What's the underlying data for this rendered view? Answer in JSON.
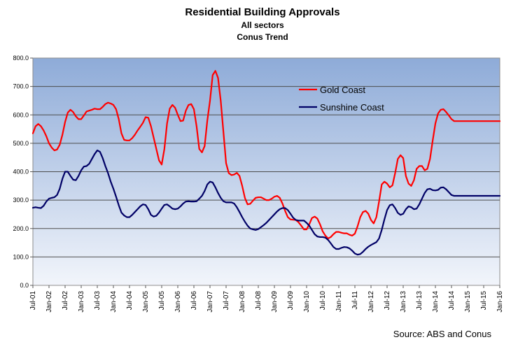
{
  "chart_data": {
    "type": "line",
    "title": "Residential Building Approvals",
    "subtitle": "All sectors",
    "subtitle2": "Conus Trend",
    "source": "Source: ABS and Conus",
    "xlabel": "",
    "ylabel": "",
    "ylim": [
      0,
      800
    ],
    "yticks": [
      "0.0",
      "100.0",
      "200.0",
      "300.0",
      "400.0",
      "500.0",
      "600.0",
      "700.0",
      "800.0"
    ],
    "x_tick_labels": [
      "Jul-01",
      "Jan-02",
      "Jul-02",
      "Jan-03",
      "Jul-03",
      "Jan-04",
      "Jul-04",
      "Jan-05",
      "Jul-05",
      "Jan-06",
      "Jul-06",
      "Jan-07",
      "Jul-07",
      "Jan-08",
      "Jul-08",
      "Jan-09",
      "Jul-09",
      "Jan-10",
      "Jul-10",
      "Jan-11",
      "Jul-11",
      "Jan-12",
      "Jul-12",
      "Jan-13",
      "Jul-13",
      "Jan-14",
      "Jul-14",
      "Jan-15",
      "Jul-15",
      "Jan-16"
    ],
    "start_month": "Jul-01",
    "n_points": 175,
    "grid": true,
    "legend_position": "upper-right-inside",
    "colors": {
      "plot_top": "#8eabd8",
      "plot_bottom": "#f2f5fb",
      "grid": "#4d4d4d",
      "gold": "#ff0000",
      "sunshine": "#000066"
    },
    "series": [
      {
        "name": "Gold Coast",
        "color": "#ff0000",
        "anchors": [
          [
            0,
            535
          ],
          [
            1,
            560
          ],
          [
            2,
            568
          ],
          [
            3,
            560
          ],
          [
            4,
            545
          ],
          [
            5,
            525
          ],
          [
            6,
            500
          ],
          [
            7,
            485
          ],
          [
            8,
            475
          ],
          [
            9,
            478
          ],
          [
            10,
            495
          ],
          [
            11,
            530
          ],
          [
            12,
            575
          ],
          [
            13,
            608
          ],
          [
            14,
            618
          ],
          [
            15,
            610
          ],
          [
            16,
            595
          ],
          [
            17,
            585
          ],
          [
            18,
            585
          ],
          [
            19,
            598
          ],
          [
            20,
            612
          ],
          [
            21,
            615
          ],
          [
            22,
            618
          ],
          [
            23,
            622
          ],
          [
            24,
            620
          ],
          [
            25,
            620
          ],
          [
            26,
            628
          ],
          [
            27,
            638
          ],
          [
            28,
            643
          ],
          [
            29,
            640
          ],
          [
            30,
            635
          ],
          [
            31,
            620
          ],
          [
            32,
            585
          ],
          [
            33,
            535
          ],
          [
            34,
            512
          ],
          [
            35,
            510
          ],
          [
            36,
            510
          ],
          [
            37,
            518
          ],
          [
            38,
            530
          ],
          [
            39,
            545
          ],
          [
            40,
            558
          ],
          [
            41,
            572
          ],
          [
            42,
            592
          ],
          [
            43,
            590
          ],
          [
            44,
            560
          ],
          [
            45,
            520
          ],
          [
            46,
            480
          ],
          [
            47,
            440
          ],
          [
            48,
            425
          ],
          [
            49,
            480
          ],
          [
            50,
            570
          ],
          [
            51,
            622
          ],
          [
            52,
            635
          ],
          [
            53,
            625
          ],
          [
            54,
            600
          ],
          [
            55,
            578
          ],
          [
            56,
            580
          ],
          [
            57,
            615
          ],
          [
            58,
            635
          ],
          [
            59,
            638
          ],
          [
            60,
            620
          ],
          [
            61,
            560
          ],
          [
            62,
            480
          ],
          [
            63,
            468
          ],
          [
            64,
            490
          ],
          [
            65,
            580
          ],
          [
            66,
            650
          ],
          [
            67,
            740
          ],
          [
            68,
            755
          ],
          [
            69,
            730
          ],
          [
            70,
            650
          ],
          [
            71,
            540
          ],
          [
            72,
            430
          ],
          [
            73,
            395
          ],
          [
            74,
            388
          ],
          [
            75,
            390
          ],
          [
            76,
            396
          ],
          [
            77,
            385
          ],
          [
            78,
            350
          ],
          [
            79,
            308
          ],
          [
            80,
            285
          ],
          [
            81,
            287
          ],
          [
            82,
            298
          ],
          [
            83,
            308
          ],
          [
            84,
            310
          ],
          [
            85,
            310
          ],
          [
            86,
            305
          ],
          [
            87,
            300
          ],
          [
            88,
            300
          ],
          [
            89,
            305
          ],
          [
            90,
            312
          ],
          [
            91,
            315
          ],
          [
            92,
            308
          ],
          [
            93,
            288
          ],
          [
            94,
            262
          ],
          [
            95,
            240
          ],
          [
            96,
            232
          ],
          [
            97,
            231
          ],
          [
            98,
            230
          ],
          [
            99,
            222
          ],
          [
            100,
            210
          ],
          [
            101,
            197
          ],
          [
            102,
            197
          ],
          [
            103,
            215
          ],
          [
            104,
            237
          ],
          [
            105,
            242
          ],
          [
            106,
            235
          ],
          [
            107,
            215
          ],
          [
            108,
            190
          ],
          [
            109,
            175
          ],
          [
            110,
            165
          ],
          [
            111,
            170
          ],
          [
            112,
            180
          ],
          [
            113,
            188
          ],
          [
            114,
            188
          ],
          [
            115,
            185
          ],
          [
            116,
            183
          ],
          [
            117,
            183
          ],
          [
            118,
            178
          ],
          [
            119,
            175
          ],
          [
            120,
            182
          ],
          [
            121,
            208
          ],
          [
            122,
            240
          ],
          [
            123,
            258
          ],
          [
            124,
            262
          ],
          [
            125,
            252
          ],
          [
            126,
            230
          ],
          [
            127,
            218
          ],
          [
            128,
            240
          ],
          [
            129,
            295
          ],
          [
            130,
            355
          ],
          [
            131,
            365
          ],
          [
            132,
            358
          ],
          [
            133,
            345
          ],
          [
            134,
            352
          ],
          [
            135,
            395
          ],
          [
            136,
            445
          ],
          [
            137,
            458
          ],
          [
            138,
            448
          ],
          [
            139,
            385
          ],
          [
            140,
            358
          ],
          [
            141,
            350
          ],
          [
            142,
            370
          ],
          [
            143,
            410
          ],
          [
            144,
            420
          ],
          [
            145,
            420
          ],
          [
            146,
            405
          ],
          [
            147,
            410
          ],
          [
            148,
            445
          ],
          [
            149,
            510
          ],
          [
            150,
            570
          ],
          [
            151,
            605
          ],
          [
            152,
            618
          ],
          [
            153,
            620
          ],
          [
            154,
            610
          ],
          [
            155,
            598
          ],
          [
            156,
            585
          ],
          [
            157,
            578
          ]
        ]
      },
      {
        "name": "Sunshine Coast",
        "color": "#000066",
        "anchors": [
          [
            0,
            273
          ],
          [
            1,
            275
          ],
          [
            2,
            273
          ],
          [
            3,
            272
          ],
          [
            4,
            280
          ],
          [
            5,
            295
          ],
          [
            6,
            305
          ],
          [
            7,
            308
          ],
          [
            8,
            310
          ],
          [
            9,
            318
          ],
          [
            10,
            340
          ],
          [
            11,
            375
          ],
          [
            12,
            400
          ],
          [
            13,
            400
          ],
          [
            14,
            385
          ],
          [
            15,
            372
          ],
          [
            16,
            370
          ],
          [
            17,
            385
          ],
          [
            18,
            405
          ],
          [
            19,
            418
          ],
          [
            20,
            420
          ],
          [
            21,
            428
          ],
          [
            22,
            445
          ],
          [
            23,
            462
          ],
          [
            24,
            475
          ],
          [
            25,
            470
          ],
          [
            26,
            448
          ],
          [
            27,
            420
          ],
          [
            28,
            395
          ],
          [
            29,
            365
          ],
          [
            30,
            340
          ],
          [
            31,
            312
          ],
          [
            32,
            282
          ],
          [
            33,
            256
          ],
          [
            34,
            246
          ],
          [
            35,
            240
          ],
          [
            36,
            240
          ],
          [
            37,
            248
          ],
          [
            38,
            258
          ],
          [
            39,
            268
          ],
          [
            40,
            278
          ],
          [
            41,
            285
          ],
          [
            42,
            283
          ],
          [
            43,
            268
          ],
          [
            44,
            248
          ],
          [
            45,
            242
          ],
          [
            46,
            245
          ],
          [
            47,
            256
          ],
          [
            48,
            270
          ],
          [
            49,
            283
          ],
          [
            50,
            285
          ],
          [
            51,
            278
          ],
          [
            52,
            270
          ],
          [
            53,
            268
          ],
          [
            54,
            270
          ],
          [
            55,
            278
          ],
          [
            56,
            288
          ],
          [
            57,
            295
          ],
          [
            58,
            296
          ],
          [
            59,
            295
          ],
          [
            60,
            295
          ],
          [
            61,
            296
          ],
          [
            62,
            305
          ],
          [
            63,
            315
          ],
          [
            64,
            332
          ],
          [
            65,
            355
          ],
          [
            66,
            365
          ],
          [
            67,
            362
          ],
          [
            68,
            345
          ],
          [
            69,
            325
          ],
          [
            70,
            308
          ],
          [
            71,
            296
          ],
          [
            72,
            292
          ],
          [
            73,
            292
          ],
          [
            74,
            292
          ],
          [
            75,
            288
          ],
          [
            76,
            275
          ],
          [
            77,
            258
          ],
          [
            78,
            240
          ],
          [
            79,
            224
          ],
          [
            80,
            210
          ],
          [
            81,
            200
          ],
          [
            82,
            197
          ],
          [
            83,
            195
          ],
          [
            84,
            198
          ],
          [
            85,
            205
          ],
          [
            86,
            212
          ],
          [
            87,
            220
          ],
          [
            88,
            230
          ],
          [
            89,
            240
          ],
          [
            90,
            250
          ],
          [
            91,
            260
          ],
          [
            92,
            268
          ],
          [
            93,
            272
          ],
          [
            94,
            272
          ],
          [
            95,
            265
          ],
          [
            96,
            252
          ],
          [
            97,
            238
          ],
          [
            98,
            230
          ],
          [
            99,
            228
          ],
          [
            100,
            228
          ],
          [
            101,
            228
          ],
          [
            102,
            220
          ],
          [
            103,
            210
          ],
          [
            104,
            195
          ],
          [
            105,
            180
          ],
          [
            106,
            172
          ],
          [
            107,
            170
          ],
          [
            108,
            170
          ],
          [
            109,
            168
          ],
          [
            110,
            160
          ],
          [
            111,
            148
          ],
          [
            112,
            135
          ],
          [
            113,
            128
          ],
          [
            114,
            128
          ],
          [
            115,
            132
          ],
          [
            116,
            135
          ],
          [
            117,
            134
          ],
          [
            118,
            130
          ],
          [
            119,
            122
          ],
          [
            120,
            112
          ],
          [
            121,
            108
          ],
          [
            122,
            110
          ],
          [
            123,
            118
          ],
          [
            124,
            128
          ],
          [
            125,
            136
          ],
          [
            126,
            142
          ],
          [
            127,
            147
          ],
          [
            128,
            152
          ],
          [
            129,
            165
          ],
          [
            130,
            195
          ],
          [
            131,
            232
          ],
          [
            132,
            265
          ],
          [
            133,
            282
          ],
          [
            134,
            285
          ],
          [
            135,
            272
          ],
          [
            136,
            255
          ],
          [
            137,
            248
          ],
          [
            138,
            252
          ],
          [
            139,
            268
          ],
          [
            140,
            278
          ],
          [
            141,
            275
          ],
          [
            142,
            268
          ],
          [
            143,
            270
          ],
          [
            144,
            285
          ],
          [
            145,
            305
          ],
          [
            146,
            325
          ],
          [
            147,
            338
          ],
          [
            148,
            340
          ],
          [
            149,
            335
          ],
          [
            150,
            334
          ],
          [
            151,
            336
          ],
          [
            152,
            344
          ],
          [
            153,
            345
          ],
          [
            154,
            338
          ],
          [
            155,
            328
          ],
          [
            156,
            318
          ],
          [
            157,
            315
          ]
        ]
      }
    ]
  }
}
